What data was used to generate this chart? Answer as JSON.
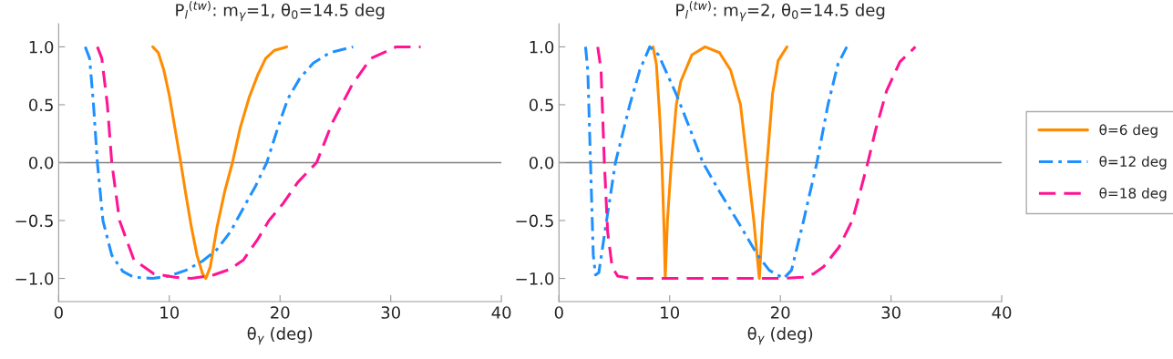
{
  "chart_data": [
    {
      "type": "line",
      "title": "P$_{l}$$^{(tw)}$: m$_{γ}$=1, θ$_{0}$=14.5 deg",
      "xlabel": "θ$_{γ}$ (deg)",
      "xlim": [
        0,
        40
      ],
      "xticks": [
        0,
        10,
        20,
        30,
        40
      ],
      "ylim": [
        -1.2,
        1.2
      ],
      "yticks": [
        {
          "value": -1,
          "label": "−1.0"
        },
        {
          "value": -0.5,
          "label": "−0.5"
        },
        {
          "value": 0,
          "label": "0.0"
        },
        {
          "value": 0.5,
          "label": "0.5"
        },
        {
          "value": 1,
          "label": "1.0"
        }
      ],
      "grid": false,
      "legend": false,
      "ref_lines": [
        {
          "axis": "y",
          "value": 0,
          "color": "#808080"
        }
      ],
      "series": [
        {
          "color": "#ff8c00",
          "line_style": "solid",
          "x": [
            8.5,
            9,
            9.5,
            10,
            10.5,
            11,
            11.5,
            12,
            12.5,
            13,
            13.3,
            13.7,
            14.3,
            15,
            15.7,
            16.4,
            17.2,
            18,
            18.7,
            19.5,
            20.6
          ],
          "values": [
            1,
            0.95,
            0.8,
            0.58,
            0.3,
            0.02,
            -0.28,
            -0.56,
            -0.8,
            -0.96,
            -1,
            -0.9,
            -0.56,
            -0.25,
            0,
            0.3,
            0.56,
            0.76,
            0.9,
            0.97,
            1
          ]
        },
        {
          "color": "#1e90ff",
          "line_style": "dashdot",
          "x": [
            2.4,
            2.8,
            3.15,
            3.5,
            4.0,
            4.8,
            5.8,
            6.8,
            8.5,
            10,
            11.5,
            13,
            14.3,
            15.5,
            16.7,
            17.8,
            18.8,
            19.8,
            20.7,
            21.8,
            23,
            24.5,
            26.6
          ],
          "values": [
            1,
            0.9,
            0.5,
            0,
            -0.5,
            -0.8,
            -0.94,
            -0.99,
            -1,
            -0.98,
            -0.93,
            -0.85,
            -0.75,
            -0.6,
            -0.39,
            -0.2,
            0,
            0.3,
            0.55,
            0.73,
            0.86,
            0.95,
            1
          ]
        },
        {
          "color": "#ff1493",
          "line_style": "dashed",
          "x": [
            3.5,
            3.9,
            4.4,
            4.8,
            5.5,
            6.8,
            8.6,
            10.5,
            12,
            14,
            15.5,
            16.7,
            18,
            19,
            20.3,
            21.6,
            23.3,
            24.7,
            26.5,
            28.2,
            30.5,
            32.7
          ],
          "values": [
            1,
            0.9,
            0.5,
            0,
            -0.5,
            -0.84,
            -0.96,
            -0.99,
            -1,
            -0.97,
            -0.92,
            -0.84,
            -0.66,
            -0.5,
            -0.35,
            -0.17,
            0,
            0.34,
            0.67,
            0.9,
            1,
            1
          ]
        }
      ]
    },
    {
      "type": "line",
      "title": "P$_{l}$$^{(tw)}$: m$_{γ}$=2, θ$_{0}$=14.5 deg",
      "xlabel": "θ$_{γ}$ (deg)",
      "xlim": [
        0,
        40
      ],
      "xticks": [
        0,
        10,
        20,
        30,
        40
      ],
      "ylim": [
        -1.2,
        1.2
      ],
      "yticks": [
        {
          "value": -1,
          "label": "−1.0"
        },
        {
          "value": -0.5,
          "label": "−0.5"
        },
        {
          "value": 0,
          "label": "0.0"
        },
        {
          "value": 0.5,
          "label": "0.5"
        },
        {
          "value": 1,
          "label": "1.0"
        }
      ],
      "grid": false,
      "legend": "right",
      "ref_lines": [
        {
          "axis": "y",
          "value": 0,
          "color": "#808080"
        }
      ],
      "series": [
        {
          "name": "θ=6 deg",
          "color": "#ff8c00",
          "line_style": "solid",
          "x": [
            8.5,
            8.8,
            9.1,
            9.3,
            9.5,
            9.6,
            9.8,
            10.15,
            10.6,
            11,
            12,
            13.2,
            14.5,
            15.5,
            16.4,
            17,
            17.6,
            18.1,
            18.4,
            18.8,
            19.3,
            19.8,
            20.6
          ],
          "values": [
            1,
            0.85,
            0.4,
            0,
            -0.6,
            -1,
            -0.5,
            0,
            0.5,
            0.7,
            0.93,
            1,
            0.95,
            0.8,
            0.5,
            0,
            -0.5,
            -1,
            -0.5,
            0,
            0.6,
            0.88,
            1
          ]
        },
        {
          "name": "θ=12 deg",
          "color": "#1e90ff",
          "line_style": "dashdot",
          "x": [
            2.4,
            2.6,
            2.85,
            3.1,
            3.3,
            3.6,
            4.3,
            5.1,
            6.4,
            7.3,
            8.2,
            9.0,
            10.6,
            11.8,
            13,
            14.5,
            16.1,
            17.95,
            19,
            20.3,
            21,
            22.1,
            23.3,
            24.3,
            25.2,
            26
          ],
          "values": [
            1,
            0.8,
            0,
            -0.8,
            -0.97,
            -0.95,
            -0.5,
            0,
            0.5,
            0.8,
            1,
            0.93,
            0.59,
            0.3,
            0,
            -0.25,
            -0.5,
            -0.8,
            -0.93,
            -1,
            -0.93,
            -0.5,
            0,
            0.5,
            0.85,
            1
          ]
        },
        {
          "name": "θ=18 deg",
          "color": "#ff1493",
          "line_style": "dashed",
          "x": [
            3.5,
            3.8,
            4.1,
            4.4,
            4.8,
            5.3,
            6.5,
            10,
            15,
            20,
            22,
            23,
            23.9,
            25.3,
            26.5,
            27.3,
            27.9,
            28.6,
            29.6,
            30.8,
            32.2
          ],
          "values": [
            1,
            0.8,
            0,
            -0.6,
            -0.9,
            -0.98,
            -1,
            -1,
            -1,
            -1,
            -0.99,
            -0.96,
            -0.9,
            -0.73,
            -0.5,
            -0.22,
            0,
            0.28,
            0.62,
            0.87,
            1
          ]
        }
      ]
    }
  ]
}
